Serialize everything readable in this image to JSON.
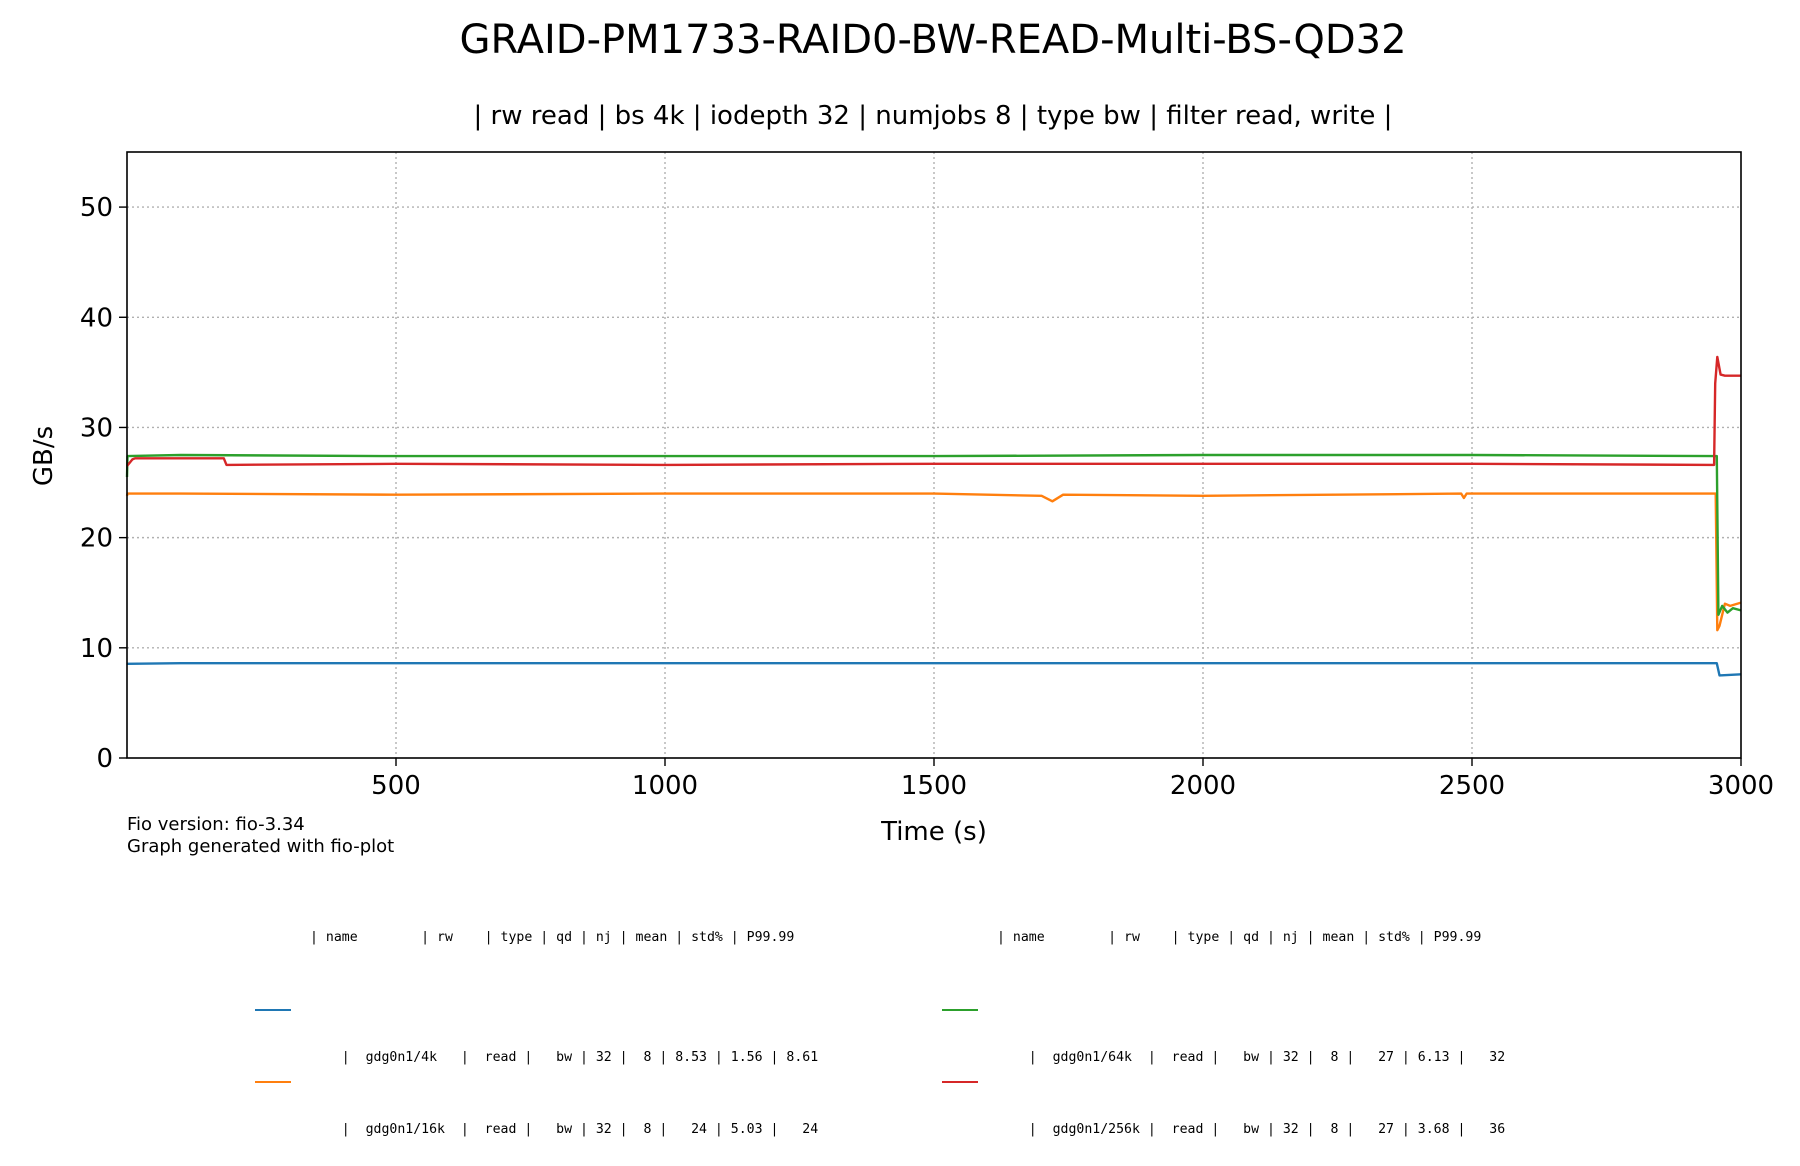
{
  "chart_data": {
    "type": "line",
    "title": "GRAID-PM1733-RAID0-BW-READ-Multi-BS-QD32",
    "subtitle": "| rw read | bs 4k | iodepth 32 | numjobs 8 | type bw | filter read, write |",
    "xlabel": "Time (s)",
    "ylabel": "GB/s",
    "xlim": [
      0,
      3000
    ],
    "ylim": [
      0,
      55
    ],
    "x_ticks": [
      500,
      1000,
      1500,
      2000,
      2500,
      3000
    ],
    "y_ticks": [
      0,
      10,
      20,
      30,
      40,
      50
    ],
    "grid": true,
    "series": [
      {
        "name": "gdg0n1/4k",
        "color": "#1f77b4",
        "x": [
          0,
          1,
          100,
          500,
          1000,
          1500,
          2000,
          2500,
          2950,
          2955,
          2960,
          3000
        ],
        "y": [
          8.6,
          8.55,
          8.6,
          8.6,
          8.6,
          8.6,
          8.6,
          8.6,
          8.6,
          8.6,
          7.5,
          7.6
        ]
      },
      {
        "name": "gdg0n1/16k",
        "color": "#ff7f0e",
        "x": [
          0,
          1,
          100,
          500,
          1000,
          1500,
          1700,
          1720,
          1740,
          2000,
          2480,
          2485,
          2490,
          2953,
          2956,
          2960,
          2970,
          2980,
          3000
        ],
        "y": [
          23.8,
          24.0,
          24.0,
          23.9,
          24.0,
          24.0,
          23.8,
          23.3,
          23.9,
          23.8,
          24.0,
          23.6,
          24.0,
          24.0,
          11.6,
          12.0,
          14.0,
          13.8,
          14.1
        ]
      },
      {
        "name": "gdg0n1/64k",
        "color": "#2ca02c",
        "x": [
          0,
          1,
          100,
          500,
          1000,
          1500,
          2000,
          2500,
          2950,
          2955,
          2958,
          2965,
          2975,
          2985,
          3000
        ],
        "y": [
          25.5,
          27.4,
          27.5,
          27.4,
          27.4,
          27.4,
          27.5,
          27.5,
          27.4,
          27.4,
          13.0,
          13.8,
          13.2,
          13.6,
          13.4
        ]
      },
      {
        "name": "gdg0n1/256k",
        "color": "#d62728",
        "x": [
          0,
          5,
          10,
          15,
          180,
          185,
          500,
          1000,
          1500,
          2000,
          2500,
          2950,
          2952,
          2956,
          2962,
          2970,
          3000
        ],
        "y": [
          26.5,
          26.8,
          27.1,
          27.2,
          27.2,
          26.6,
          26.7,
          26.6,
          26.7,
          26.7,
          26.7,
          26.6,
          34.0,
          36.4,
          34.8,
          34.7,
          34.7
        ]
      }
    ]
  },
  "footer": {
    "version": "Fio version: fio-3.34",
    "generator": "Graph generated with fio-plot"
  },
  "legend": {
    "header": "| name        | rw    | type | qd | nj | mean | std% | P99.99",
    "left": [
      {
        "color": "#1f77b4",
        "text": "|  gdg0n1/4k   |  read |   bw | 32 |  8 | 8.53 | 1.56 | 8.61"
      },
      {
        "color": "#ff7f0e",
        "text": "|  gdg0n1/16k  |  read |   bw | 32 |  8 |   24 | 5.03 |   24"
      }
    ],
    "right": [
      {
        "color": "#2ca02c",
        "text": "|  gdg0n1/64k  |  read |   bw | 32 |  8 |   27 | 6.13 |   32"
      },
      {
        "color": "#d62728",
        "text": "|  gdg0n1/256k |  read |   bw | 32 |  8 |   27 | 3.68 |   36"
      }
    ]
  }
}
